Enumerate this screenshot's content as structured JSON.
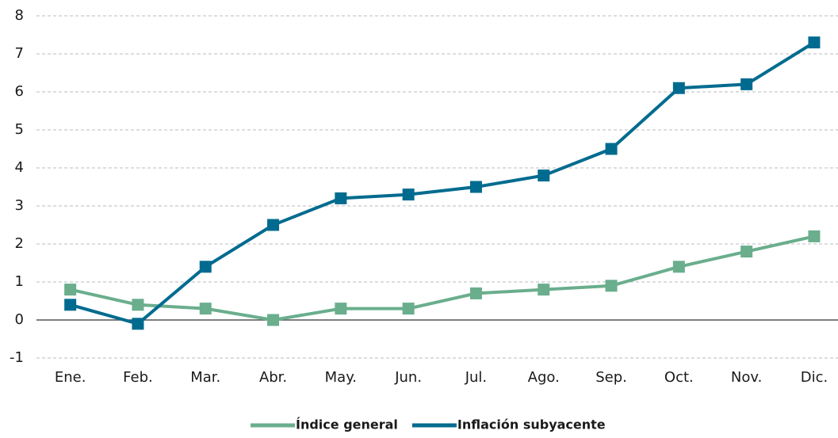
{
  "chart_data": {
    "type": "line",
    "categories": [
      "Ene.",
      "Feb.",
      "Mar.",
      "Abr.",
      "May.",
      "Jun.",
      "Jul.",
      "Ago.",
      "Sep.",
      "Oct.",
      "Nov.",
      "Dic."
    ],
    "series": [
      {
        "name": "Índice general",
        "color": "#6aae8d",
        "values": [
          0.8,
          0.4,
          0.3,
          0.0,
          0.3,
          0.3,
          0.7,
          0.8,
          0.9,
          1.4,
          1.8,
          2.2
        ]
      },
      {
        "name": "Inflación subyacente",
        "color": "#006b8f",
        "values": [
          0.4,
          -0.1,
          1.4,
          2.5,
          3.2,
          3.3,
          3.5,
          3.8,
          4.5,
          6.1,
          6.2,
          7.3
        ]
      }
    ],
    "ylim": [
      -1,
      8
    ],
    "yticks": [
      -1,
      0,
      1,
      2,
      3,
      4,
      5,
      6,
      7,
      8
    ],
    "grid": true,
    "legend": "bottom"
  }
}
